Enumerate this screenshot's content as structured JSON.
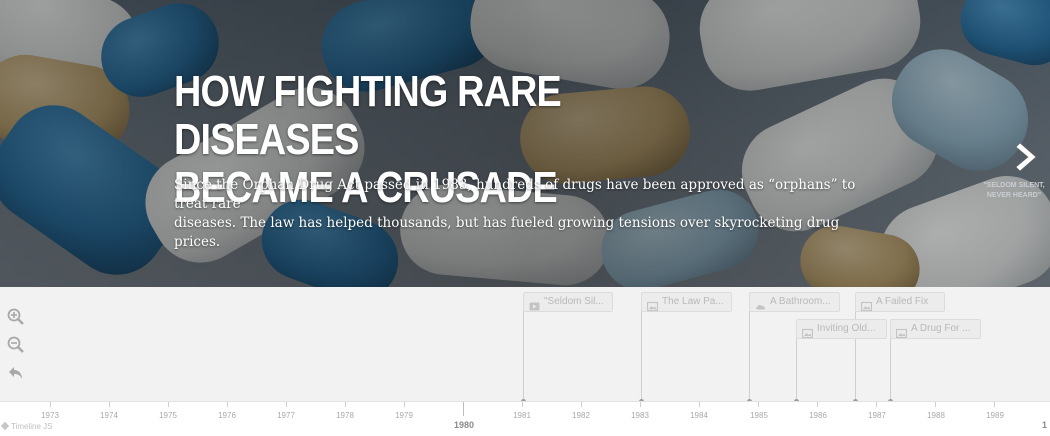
{
  "slide": {
    "headline_line1": "HOW FIGHTING RARE DISEASES",
    "headline_line2": "BECAME A CRUSADE",
    "dek_line1": "Since the Orphan Drug Act passed in 1983, hundreds of drugs have been approved as “orphans” to treat rare",
    "dek_line2": "diseases. The law has helped thousands, but has fueled growing tensions over skyrocketing drug prices.",
    "next_label_line1": "\"SELDOM SILENT,",
    "next_label_line2": "NEVER HEARD\""
  },
  "zoom_controls": [
    {
      "name": "zoom-in-icon"
    },
    {
      "name": "zoom-out-icon"
    },
    {
      "name": "back-arrow-icon"
    }
  ],
  "markers": [
    {
      "label": "\"Seldom Sil...",
      "icon": "video-icon"
    },
    {
      "label": "The Law Pa...",
      "icon": "image-icon"
    },
    {
      "label": "A Bathroom...",
      "icon": "cloud-icon"
    },
    {
      "label": "A Failed Fix",
      "icon": "image-icon"
    },
    {
      "label": "Inviting Old...",
      "icon": "image-icon"
    },
    {
      "label": "A Drug For ...",
      "icon": "image-icon"
    }
  ],
  "axis": {
    "minor_years": [
      "1973",
      "1974",
      "1975",
      "1976",
      "1977",
      "1978",
      "1979",
      "1981",
      "1982",
      "1983",
      "1984",
      "1985",
      "1986",
      "1987",
      "1988",
      "1989"
    ],
    "major_year": "1980",
    "edge_digit": "1"
  },
  "credit": "Timeline JS"
}
